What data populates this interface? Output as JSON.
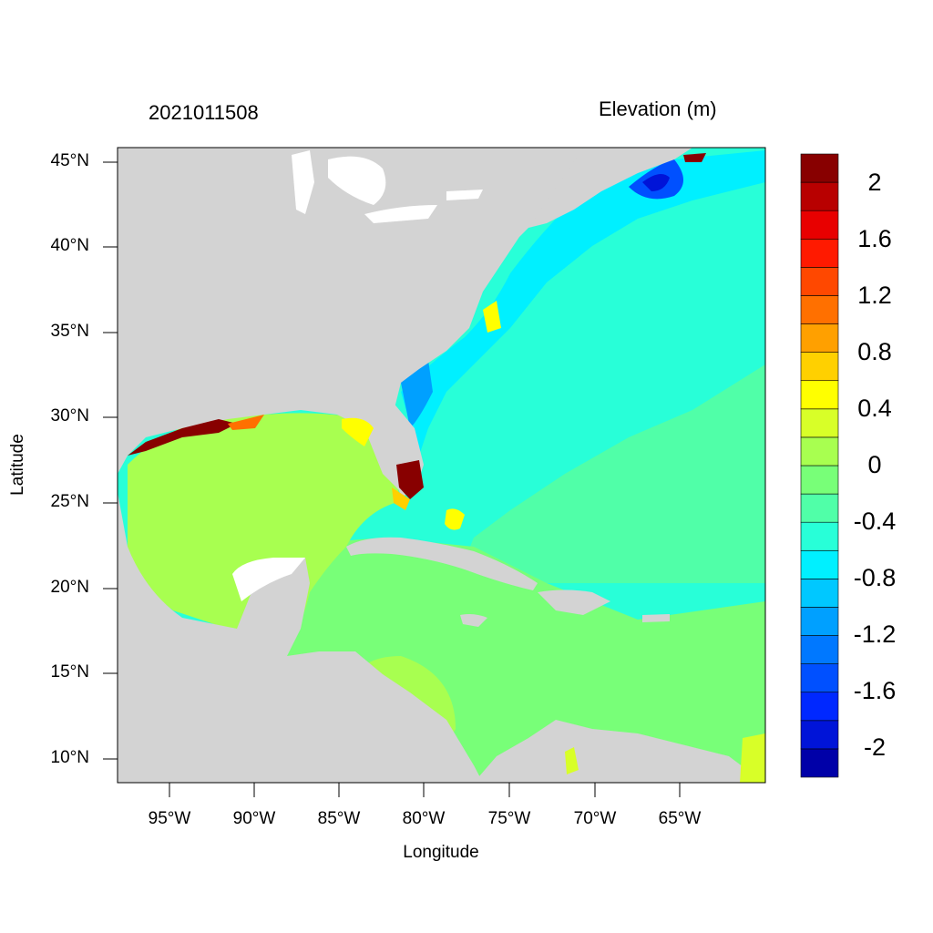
{
  "left_title": "2021011508",
  "right_title": "Elevation (m)",
  "x_axis_label": "Longitude",
  "y_axis_label": "Latitude",
  "x_ticks": [
    "95°W",
    "90°W",
    "85°W",
    "80°W",
    "75°W",
    "70°W",
    "65°W"
  ],
  "y_ticks": [
    "45°N",
    "40°N",
    "35°N",
    "30°N",
    "25°N",
    "20°N",
    "15°N",
    "10°N"
  ],
  "colorbar": {
    "colors": [
      "#0000a8",
      "#0014d8",
      "#0028ff",
      "#0050ff",
      "#0078ff",
      "#00a0ff",
      "#00c8ff",
      "#00f0ff",
      "#28ffd8",
      "#50ffa8",
      "#78ff78",
      "#a8ff50",
      "#d8ff28",
      "#ffff00",
      "#ffd000",
      "#ffa000",
      "#ff7000",
      "#ff4800",
      "#ff1a00",
      "#e80000",
      "#b80000",
      "#880000"
    ],
    "labels": [
      "2",
      "1.6",
      "1.2",
      "0.8",
      "0.4",
      "0",
      "-0.4",
      "-0.8",
      "-1.2",
      "-1.6",
      "-2"
    ]
  },
  "map_colors": {
    "land": "#d3d3d3",
    "ocean_deep": "#28ffd8",
    "gulf": "#a8ff50",
    "caribbean": "#78ff78",
    "atlantic_south": "#50ffa8"
  }
}
